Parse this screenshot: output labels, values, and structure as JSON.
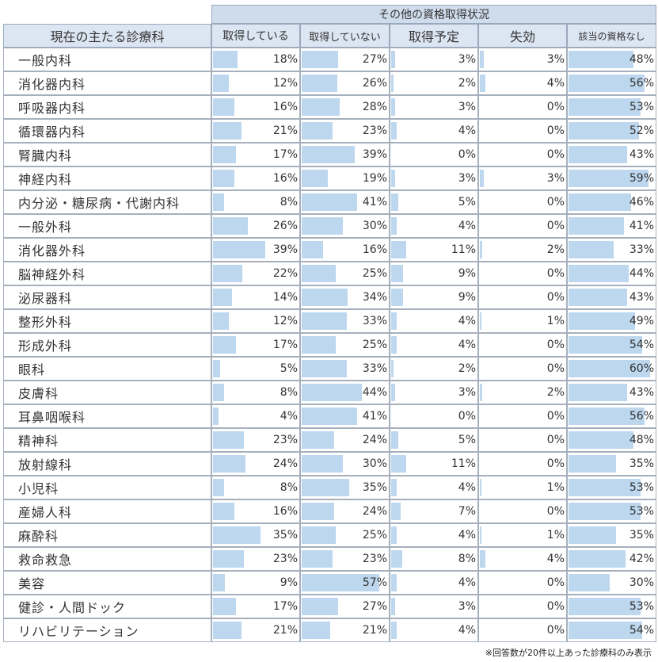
{
  "table": {
    "group_header": "その他の資格取得状況",
    "row_header": "現在の主たる診療科",
    "columns": [
      "取得している",
      "取得していない",
      "取得予定",
      "失効",
      "該当の資格なし"
    ],
    "footnote": "※回答数が20件以上あった診療科のみ表示"
  },
  "chart_data": {
    "type": "table",
    "unit": "%",
    "title": "",
    "categories": [
      "一般内科",
      "消化器内科",
      "呼吸器内科",
      "循環器内科",
      "腎臓内科",
      "神経内科",
      "内分泌・糖尿病・代謝内科",
      "一般外科",
      "消化器外科",
      "脳神経外科",
      "泌尿器科",
      "整形外科",
      "形成外科",
      "眼科",
      "皮膚科",
      "耳鼻咽喉科",
      "精神科",
      "放射線科",
      "小児科",
      "産婦人科",
      "麻酔科",
      "救命救急",
      "美容",
      "健診・人間ドック",
      "リハビリテーション"
    ],
    "series": [
      {
        "name": "取得している",
        "values": [
          18,
          12,
          16,
          21,
          17,
          16,
          8,
          26,
          39,
          22,
          14,
          12,
          17,
          5,
          8,
          4,
          23,
          24,
          8,
          16,
          35,
          23,
          9,
          17,
          21
        ]
      },
      {
        "name": "取得していない",
        "values": [
          27,
          26,
          28,
          23,
          39,
          19,
          41,
          30,
          16,
          25,
          34,
          33,
          25,
          33,
          44,
          41,
          24,
          30,
          35,
          24,
          25,
          23,
          57,
          27,
          21
        ]
      },
      {
        "name": "取得予定",
        "values": [
          3,
          2,
          3,
          4,
          0,
          3,
          5,
          4,
          11,
          9,
          9,
          4,
          4,
          2,
          3,
          0,
          5,
          11,
          4,
          7,
          4,
          8,
          4,
          3,
          4
        ]
      },
      {
        "name": "失効",
        "values": [
          3,
          4,
          0,
          0,
          0,
          3,
          0,
          0,
          2,
          0,
          0,
          1,
          0,
          0,
          2,
          0,
          0,
          0,
          1,
          0,
          1,
          4,
          0,
          0,
          0
        ]
      },
      {
        "name": "該当の資格なし",
        "values": [
          48,
          56,
          53,
          52,
          43,
          59,
          46,
          41,
          33,
          44,
          43,
          49,
          54,
          60,
          43,
          56,
          48,
          35,
          53,
          53,
          35,
          42,
          30,
          53,
          54
        ]
      }
    ],
    "bar_color": "#bdd7ee",
    "bar_scale_max": 60
  }
}
